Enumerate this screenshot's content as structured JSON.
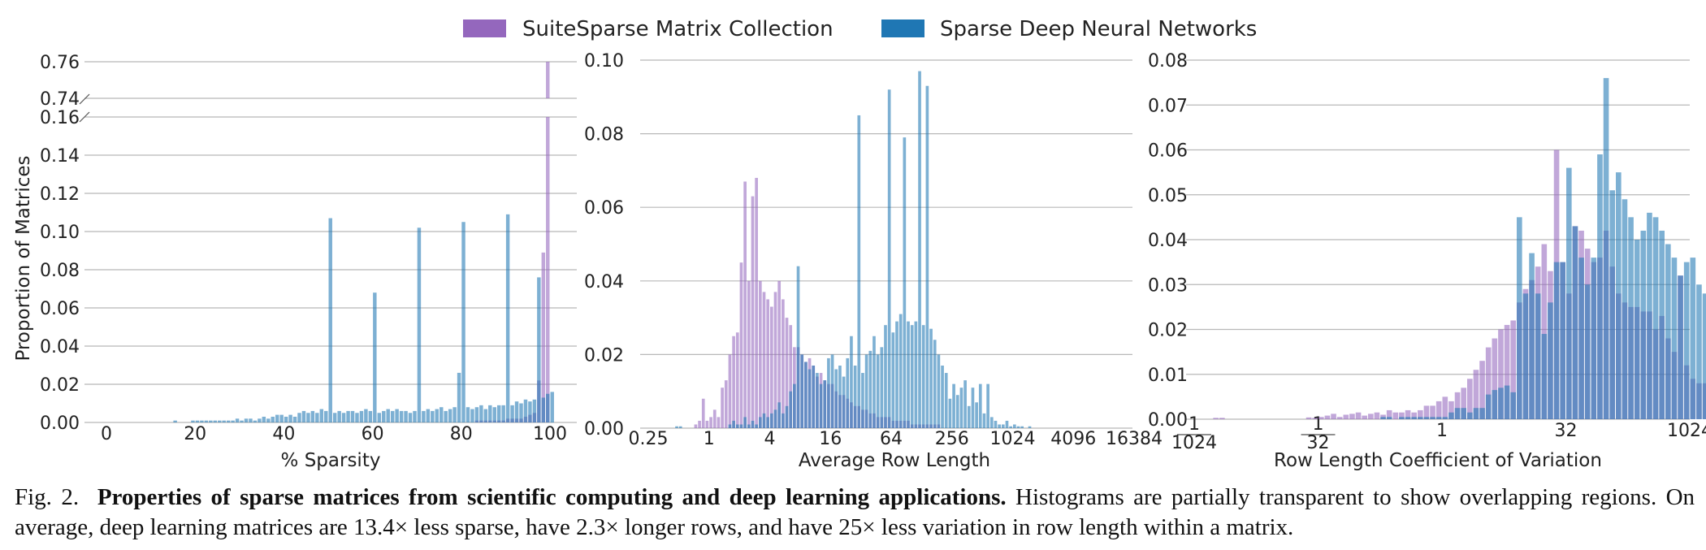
{
  "legend": {
    "items": [
      {
        "label": "SuiteSparse Matrix Collection",
        "color": "#9467bd"
      },
      {
        "label": "Sparse Deep Neural Networks",
        "color": "#1f77b4"
      }
    ]
  },
  "caption": {
    "fig": "Fig. 2.",
    "title": "Properties of sparse matrices from scientific computing and deep learning applications.",
    "body": "Histograms are partially transparent to show overlapping regions. On average, deep learning matrices are 13.4× less sparse, have 2.3× longer rows, and have 25× less variation in row length within a matrix."
  },
  "chart_data": [
    {
      "type": "bar",
      "subtype": "histogram",
      "xlabel": "% Sparsity",
      "ylabel": "Proportion of Matrices",
      "xlim": [
        0,
        100
      ],
      "xticks": [
        0,
        20,
        40,
        60,
        80,
        100
      ],
      "xtick_labels": [
        "0",
        "20",
        "40",
        "60",
        "80",
        "100"
      ],
      "broken_y_axis": true,
      "ylim_lower": [
        0,
        0.16
      ],
      "ylim_upper": [
        0.74,
        0.76
      ],
      "yticks_lower": [
        0,
        0.02,
        0.04,
        0.06,
        0.08,
        0.1,
        0.12,
        0.14,
        0.16
      ],
      "ytick_labels_lower": [
        "0.00",
        "0.02",
        "0.04",
        "0.06",
        "0.08",
        "0.10",
        "0.12",
        "0.14",
        "0.16"
      ],
      "yticks_upper": [
        0.74,
        0.76
      ],
      "ytick_labels_upper": [
        "0.74",
        "0.76"
      ],
      "bin_edges_start": 0,
      "bin_width": 1,
      "series": [
        {
          "name": "SuiteSparse Matrix Collection",
          "color": "#9467bd",
          "values": [
            0,
            0,
            0,
            0,
            0,
            0,
            0,
            0,
            0,
            0,
            0,
            0,
            0,
            0,
            0,
            0,
            0,
            0,
            0,
            0,
            0,
            0,
            0,
            0,
            0,
            0,
            0,
            0,
            0,
            0,
            0,
            0,
            0,
            0,
            0,
            0,
            0,
            0,
            0,
            0,
            0,
            0,
            0,
            0,
            0,
            0,
            0,
            0,
            0,
            0,
            0,
            0,
            0,
            0,
            0,
            0,
            0,
            0,
            0,
            0,
            0,
            0,
            0,
            0,
            0,
            0,
            0,
            0,
            0,
            0,
            0,
            0,
            0,
            0,
            0,
            0,
            0,
            0,
            0,
            0,
            0,
            0,
            0,
            0.001,
            0.001,
            0.001,
            0.001,
            0.001,
            0.001,
            0.001,
            0.002,
            0.002,
            0.002,
            0.002,
            0.003,
            0.004,
            0.005,
            0.022,
            0.089,
            0.76
          ]
        },
        {
          "name": "Sparse Deep Neural Networks",
          "color": "#1f77b4",
          "values": [
            0,
            0,
            0,
            0,
            0,
            0,
            0,
            0,
            0,
            0,
            0,
            0,
            0,
            0,
            0,
            0.001,
            0,
            0,
            0,
            0.001,
            0.001,
            0.001,
            0.001,
            0.001,
            0.001,
            0.001,
            0.001,
            0.001,
            0.001,
            0.002,
            0.001,
            0.002,
            0.002,
            0.001,
            0.002,
            0.003,
            0.002,
            0.003,
            0.004,
            0.004,
            0.003,
            0.004,
            0.003,
            0.005,
            0.006,
            0.005,
            0.006,
            0.005,
            0.007,
            0.006,
            0.107,
            0.005,
            0.006,
            0.005,
            0.006,
            0.006,
            0.005,
            0.006,
            0.007,
            0.006,
            0.068,
            0.005,
            0.006,
            0.007,
            0.006,
            0.007,
            0.006,
            0.006,
            0.005,
            0.006,
            0.102,
            0.006,
            0.007,
            0.006,
            0.007,
            0.008,
            0.006,
            0.007,
            0.008,
            0.026,
            0.105,
            0.008,
            0.007,
            0.008,
            0.009,
            0.007,
            0.009,
            0.008,
            0.009,
            0.009,
            0.109,
            0.009,
            0.011,
            0.01,
            0.012,
            0.011,
            0.012,
            0.076,
            0.013,
            0.015,
            0.016
          ]
        }
      ]
    },
    {
      "type": "bar",
      "subtype": "histogram",
      "xlabel": "Average Row Length",
      "xscale": "log2",
      "xlim": [
        0.25,
        16384
      ],
      "xticks": [
        0.25,
        1,
        4,
        16,
        64,
        256,
        1024,
        4096,
        16384
      ],
      "xtick_labels": [
        "0.25",
        "1",
        "4",
        "16",
        "64",
        "256",
        "1024",
        "4096",
        "16384"
      ],
      "ylim": [
        0,
        0.1
      ],
      "yticks": [
        0,
        0.02,
        0.04,
        0.06,
        0.08,
        0.1
      ],
      "ytick_labels": [
        "0.00",
        "0.02",
        "0.04",
        "0.06",
        "0.08",
        "0.10"
      ],
      "bin_log2_start": -2,
      "bin_log2_width": 0.125,
      "series": [
        {
          "name": "SuiteSparse Matrix Collection",
          "color": "#9467bd",
          "values": [
            0,
            0,
            0,
            0,
            0,
            0,
            0,
            0,
            0,
            0,
            0,
            0,
            0.001,
            0.002,
            0.008,
            0.002,
            0.003,
            0.005,
            0.003,
            0.011,
            0.013,
            0.02,
            0.025,
            0.026,
            0.045,
            0.067,
            0.04,
            0.063,
            0.068,
            0.04,
            0.037,
            0.035,
            0.033,
            0.037,
            0.04,
            0.035,
            0.03,
            0.028,
            0.022,
            0.022,
            0.02,
            0.018,
            0.019,
            0.017,
            0.014,
            0.015,
            0.013,
            0.012,
            0.012,
            0.01,
            0.009,
            0.009,
            0.008,
            0.007,
            0.006,
            0.006,
            0.005,
            0.005,
            0.004,
            0.004,
            0.003,
            0.003,
            0.003,
            0.003,
            0.002,
            0.002,
            0.002,
            0.002,
            0.002,
            0.001,
            0.001,
            0.001,
            0.001,
            0.001,
            0.001,
            0.001,
            0.001,
            0,
            0,
            0,
            0,
            0,
            0,
            0,
            0,
            0,
            0,
            0,
            0,
            0,
            0,
            0,
            0,
            0,
            0,
            0,
            0,
            0,
            0,
            0,
            0,
            0,
            0,
            0,
            0,
            0,
            0,
            0,
            0,
            0,
            0,
            0,
            0,
            0
          ]
        },
        {
          "name": "Sparse Deep Neural Networks",
          "color": "#1f77b4",
          "values": [
            0,
            0,
            0,
            0,
            0,
            0,
            0,
            0.0005,
            0.0005,
            0,
            0,
            0,
            0,
            0,
            0,
            0,
            0,
            0,
            0,
            0,
            0,
            0.001,
            0.002,
            0.001,
            0.001,
            0.003,
            0.001,
            0.002,
            0.001,
            0.003,
            0.004,
            0.003,
            0.004,
            0.005,
            0.007,
            0.004,
            0.006,
            0.01,
            0.012,
            0.044,
            0.02,
            0.018,
            0.016,
            0.017,
            0.015,
            0.012,
            0.013,
            0.019,
            0.02,
            0.016,
            0.017,
            0.014,
            0.019,
            0.025,
            0.017,
            0.085,
            0.015,
            0.02,
            0.021,
            0.025,
            0.02,
            0.022,
            0.028,
            0.092,
            0.026,
            0.029,
            0.031,
            0.079,
            0.029,
            0.028,
            0.029,
            0.097,
            0.028,
            0.093,
            0.027,
            0.024,
            0.02,
            0.017,
            0.015,
            0.008,
            0.012,
            0.009,
            0.011,
            0.013,
            0.006,
            0.011,
            0.007,
            0.012,
            0.004,
            0.012,
            0.003,
            0.002,
            0.001,
            0.001,
            0.002,
            0.0005,
            0.001,
            0.0005,
            0.0005,
            0,
            0.0005,
            0,
            0,
            0,
            0,
            0,
            0,
            0,
            0,
            0,
            0,
            0,
            0,
            0,
            0
          ]
        }
      ]
    },
    {
      "type": "bar",
      "subtype": "histogram",
      "xlabel": "Row Length Coefficient of Variation",
      "xscale": "log2",
      "xlim": [
        0.0009765625,
        1024
      ],
      "xticks": [
        -10,
        -5,
        0,
        5,
        10
      ],
      "xtick_labels": [
        "1/1024",
        "1/32",
        "1",
        "32",
        "1024"
      ],
      "ylim": [
        0,
        0.08
      ],
      "yticks": [
        0,
        0.01,
        0.02,
        0.03,
        0.04,
        0.05,
        0.06,
        0.07,
        0.08
      ],
      "ytick_labels": [
        "0.00",
        "0.01",
        "0.02",
        "0.03",
        "0.04",
        "0.05",
        "0.06",
        "0.07",
        "0.08"
      ],
      "bin_log2_start": -10,
      "bin_log2_width": 0.25,
      "series": [
        {
          "name": "SuiteSparse Matrix Collection",
          "color": "#9467bd",
          "values": [
            0,
            0,
            0,
            0.0003,
            0.0003,
            0,
            0,
            0,
            0,
            0,
            0,
            0,
            0,
            0,
            0,
            0,
            0,
            0,
            0.0004,
            0.0003,
            0.0005,
            0.0008,
            0.0012,
            0.0005,
            0.001,
            0.0012,
            0.0015,
            0.0008,
            0.0012,
            0.0015,
            0.001,
            0.002,
            0.0015,
            0.0015,
            0.002,
            0.0015,
            0.002,
            0.003,
            0.003,
            0.004,
            0.005,
            0.004,
            0.006,
            0.007,
            0.009,
            0.011,
            0.013,
            0.016,
            0.018,
            0.02,
            0.021,
            0.022,
            0.026,
            0.029,
            0.031,
            0.034,
            0.039,
            0.033,
            0.06,
            0.035,
            0.028,
            0.043,
            0.042,
            0.038,
            0.035,
            0.036,
            0.042,
            0.034,
            0.028,
            0.026,
            0.025,
            0.025,
            0.024,
            0.024,
            0.02,
            0.023,
            0.018,
            0.015,
            0.032,
            0.012,
            0.009,
            0.008,
            0.008,
            0.006,
            0.007,
            0.005,
            0.004,
            0.003,
            0.003,
            0.003,
            0.002,
            0.002,
            0.0015,
            0.0015,
            0.0015,
            0.001,
            0.0008,
            0.0005,
            0.0008,
            0.0003,
            0.0003,
            0.0003,
            0.0002,
            0,
            0,
            0,
            0,
            0,
            0,
            0,
            0,
            0,
            0,
            0,
            0,
            0,
            0,
            0,
            0,
            0
          ]
        },
        {
          "name": "Sparse Deep Neural Networks",
          "color": "#1f77b4",
          "values": [
            0,
            0,
            0,
            0,
            0,
            0,
            0,
            0,
            0,
            0,
            0,
            0,
            0,
            0,
            0,
            0,
            0,
            0,
            0,
            0,
            0,
            0,
            0,
            0,
            0,
            0,
            0,
            0,
            0,
            0,
            0.0005,
            0.0005,
            0,
            0.0005,
            0.0005,
            0.0005,
            0.0005,
            0.0005,
            0.0005,
            0.0005,
            0.0005,
            0.0015,
            0.0025,
            0.0025,
            0.0015,
            0.0025,
            0.0025,
            0.0055,
            0.0065,
            0.007,
            0.0075,
            0.006,
            0.045,
            0.028,
            0.037,
            0.028,
            0.019,
            0.026,
            0.035,
            0.035,
            0.056,
            0.043,
            0.036,
            0.03,
            0.036,
            0.059,
            0.076,
            0.051,
            0.055,
            0.049,
            0.045,
            0.04,
            0.042,
            0.046,
            0.045,
            0.042,
            0.039,
            0.036,
            0.032,
            0.035,
            0.036,
            0.03,
            0.028,
            0.03,
            0.024,
            0.022,
            0.02,
            0.016,
            0.014,
            0.011,
            0.009,
            0.008,
            0.005,
            0.004,
            0.003,
            0.002,
            0.002,
            0.001,
            0.0015,
            0.0005,
            0.0005,
            0.0005,
            0.0005,
            0.0005,
            0.0005,
            0.0005,
            0,
            0,
            0,
            0,
            0,
            0,
            0,
            0,
            0,
            0,
            0,
            0,
            0,
            0
          ]
        }
      ]
    }
  ]
}
